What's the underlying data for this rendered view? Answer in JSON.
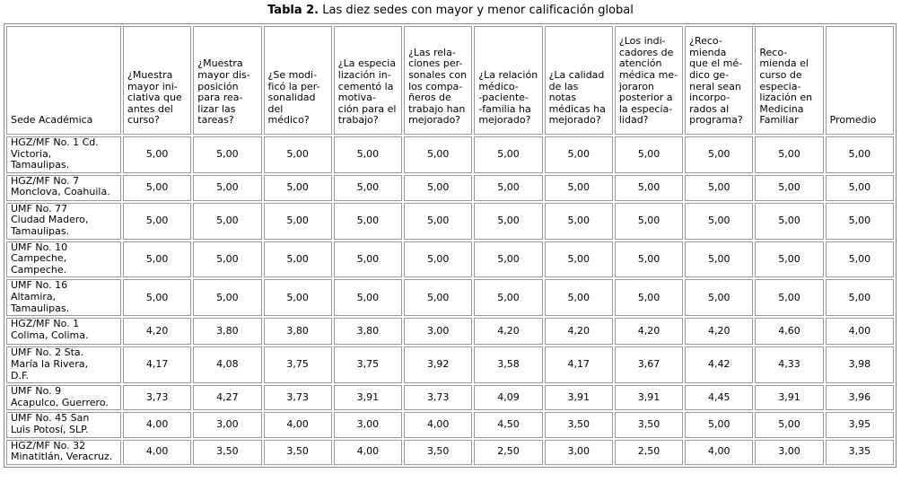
{
  "title": {
    "label": "Tabla 2.",
    "text": "Las diez sedes con mayor y menor calificación global"
  },
  "table": {
    "header": [
      "Sede Académica",
      "¿Muestra\nmayor ini-\nciativa que\nantes del\ncurso?",
      "¿Muestra\nmayor dis-\nposición\npara rea-\nlizar las\ntareas?",
      "¿Se modi-\nficó la per-\nsonalidad\ndel médico?",
      "¿La especia\nlización in-\ncementó la\nmotiva-\nción para el\ntrabajo?",
      "¿Las rela-\nciones per-\nsonales con\nlos compa-\nñeros de\ntrabajo han\nmejorado?",
      "¿La relación\nmédico-\n-paciente-\n-familia ha\nmejorado?",
      "¿La calidad\nde las notas\nmédicas ha\nmejorado?",
      "¿Los indi-\ncadores de\natención\nmédica me-\njoraron\nposterior a\nla especia-\nlidad?",
      "¿Reco-\nmienda\nque el mé-\ndico ge-\nneral sean\nincorpo-\nrados al\nprograma?",
      "Reco-\nmienda el\ncurso de\nespecia-\nlización en\nMedicina\nFamiliar",
      "Promedio"
    ],
    "rows": [
      [
        "HGZ/MF No. 1 Cd.\nVictoria,\nTamaulipas.",
        "5,00",
        "5,00",
        "5,00",
        "5,00",
        "5,00",
        "5,00",
        "5,00",
        "5,00",
        "5,00",
        "5,00",
        "5,00"
      ],
      [
        "HGZ/MF No. 7\nMonclova, Coahuila.",
        "5,00",
        "5,00",
        "5,00",
        "5,00",
        "5,00",
        "5,00",
        "5,00",
        "5,00",
        "5,00",
        "5,00",
        "5,00"
      ],
      [
        "UMF No. 77\nCiudad Madero,\nTamaulipas.",
        "5,00",
        "5,00",
        "5,00",
        "5,00",
        "5,00",
        "5,00",
        "5,00",
        "5,00",
        "5,00",
        "5,00",
        "5,00"
      ],
      [
        "UMF No. 10\nCampeche,\nCampeche.",
        "5,00",
        "5,00",
        "5,00",
        "5,00",
        "5,00",
        "5,00",
        "5,00",
        "5,00",
        "5,00",
        "5,00",
        "5,00"
      ],
      [
        "UMF No. 16\nAltamira,\nTamaulipas.",
        "5,00",
        "5,00",
        "5,00",
        "5,00",
        "5,00",
        "5,00",
        "5,00",
        "5,00",
        "5,00",
        "5,00",
        "5,00"
      ],
      [
        "HGZ/MF No. 1\nColima, Colima.",
        "4,20",
        "3,80",
        "3,80",
        "3,80",
        "3,00",
        "4,20",
        "4,20",
        "4,20",
        "4,20",
        "4,60",
        "4,00"
      ],
      [
        "UMF No. 2 Sta.\nMaría la Rivera,\nD.F.",
        "4,17",
        "4,08",
        "3,75",
        "3,75",
        "3,92",
        "3,58",
        "4,17",
        "3,67",
        "4,42",
        "4,33",
        "3,98"
      ],
      [
        "UMF No. 9\nAcapulco, Guerrero.",
        "3,73",
        "4,27",
        "3,73",
        "3,91",
        "3,73",
        "4,09",
        "3,91",
        "3,91",
        "4,45",
        "3,91",
        "3,96"
      ],
      [
        "UMF No. 45 San\nLuis Potosí, SLP.",
        "4,00",
        "3,00",
        "4,00",
        "3,00",
        "4,00",
        "4,50",
        "3,50",
        "3,50",
        "5,00",
        "5,00",
        "3,95"
      ],
      [
        "HGZ/MF No. 32\nMinatitlán, Veracruz.",
        "4,00",
        "3,50",
        "3,50",
        "4,00",
        "3,50",
        "2,50",
        "3,00",
        "2,50",
        "4,00",
        "3,00",
        "3,35"
      ]
    ]
  }
}
